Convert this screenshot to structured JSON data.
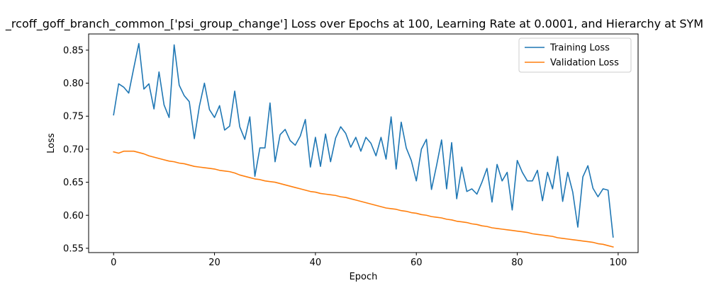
{
  "chart_data": {
    "type": "line",
    "title": "_rcoff_goff_branch_common_['psi_group_change'] Loss over Epochs at 100, Learning Rate at 0.0001, and Hierarchy at SYM",
    "xlabel": "Epoch",
    "ylabel": "Loss",
    "xlim": [
      -4.95,
      103.95
    ],
    "ylim": [
      0.5435,
      0.8745
    ],
    "xticks": [
      0,
      20,
      40,
      60,
      80,
      100
    ],
    "yticks": [
      0.55,
      0.6,
      0.65,
      0.7,
      0.75,
      0.8,
      0.85
    ],
    "xtick_labels": [
      "0",
      "20",
      "40",
      "60",
      "80",
      "100"
    ],
    "ytick_labels": [
      "0.55",
      "0.60",
      "0.65",
      "0.70",
      "0.75",
      "0.80",
      "0.85"
    ],
    "grid": false,
    "legend_position": "top-right",
    "x": [
      0,
      1,
      2,
      3,
      4,
      5,
      6,
      7,
      8,
      9,
      10,
      11,
      12,
      13,
      14,
      15,
      16,
      17,
      18,
      19,
      20,
      21,
      22,
      23,
      24,
      25,
      26,
      27,
      28,
      29,
      30,
      31,
      32,
      33,
      34,
      35,
      36,
      37,
      38,
      39,
      40,
      41,
      42,
      43,
      44,
      45,
      46,
      47,
      48,
      49,
      50,
      51,
      52,
      53,
      54,
      55,
      56,
      57,
      58,
      59,
      60,
      61,
      62,
      63,
      64,
      65,
      66,
      67,
      68,
      69,
      70,
      71,
      72,
      73,
      74,
      75,
      76,
      77,
      78,
      79,
      80,
      81,
      82,
      83,
      84,
      85,
      86,
      87,
      88,
      89,
      90,
      91,
      92,
      93,
      94,
      95,
      96,
      97,
      98,
      99
    ],
    "series": [
      {
        "name": "Training Loss",
        "color": "#1f77b4",
        "values": [
          0.752,
          0.799,
          0.794,
          0.785,
          0.823,
          0.86,
          0.791,
          0.799,
          0.761,
          0.817,
          0.767,
          0.748,
          0.858,
          0.797,
          0.781,
          0.772,
          0.716,
          0.765,
          0.8,
          0.76,
          0.748,
          0.766,
          0.729,
          0.735,
          0.788,
          0.734,
          0.715,
          0.749,
          0.659,
          0.702,
          0.702,
          0.77,
          0.681,
          0.722,
          0.73,
          0.713,
          0.706,
          0.72,
          0.745,
          0.673,
          0.718,
          0.674,
          0.723,
          0.681,
          0.717,
          0.734,
          0.724,
          0.703,
          0.718,
          0.697,
          0.718,
          0.709,
          0.69,
          0.718,
          0.685,
          0.749,
          0.67,
          0.741,
          0.702,
          0.683,
          0.652,
          0.7,
          0.715,
          0.639,
          0.675,
          0.714,
          0.64,
          0.71,
          0.625,
          0.673,
          0.636,
          0.64,
          0.632,
          0.65,
          0.671,
          0.62,
          0.677,
          0.652,
          0.665,
          0.608,
          0.683,
          0.665,
          0.652,
          0.652,
          0.668,
          0.622,
          0.665,
          0.64,
          0.689,
          0.621,
          0.665,
          0.635,
          0.582,
          0.658,
          0.675,
          0.641,
          0.628,
          0.64,
          0.638,
          0.567
        ]
      },
      {
        "name": "Validation Loss",
        "color": "#ff7f0e",
        "values": [
          0.696,
          0.694,
          0.697,
          0.697,
          0.697,
          0.695,
          0.693,
          0.69,
          0.688,
          0.686,
          0.684,
          0.682,
          0.681,
          0.679,
          0.678,
          0.676,
          0.674,
          0.673,
          0.672,
          0.671,
          0.67,
          0.668,
          0.667,
          0.666,
          0.664,
          0.661,
          0.659,
          0.657,
          0.655,
          0.654,
          0.652,
          0.651,
          0.65,
          0.648,
          0.646,
          0.644,
          0.642,
          0.64,
          0.638,
          0.636,
          0.635,
          0.633,
          0.632,
          0.631,
          0.63,
          0.628,
          0.627,
          0.625,
          0.623,
          0.621,
          0.619,
          0.617,
          0.615,
          0.613,
          0.611,
          0.61,
          0.609,
          0.607,
          0.606,
          0.604,
          0.603,
          0.601,
          0.6,
          0.598,
          0.597,
          0.596,
          0.594,
          0.593,
          0.591,
          0.59,
          0.589,
          0.587,
          0.586,
          0.584,
          0.583,
          0.581,
          0.58,
          0.579,
          0.578,
          0.577,
          0.576,
          0.575,
          0.574,
          0.572,
          0.571,
          0.57,
          0.569,
          0.568,
          0.566,
          0.565,
          0.564,
          0.563,
          0.562,
          0.561,
          0.56,
          0.559,
          0.557,
          0.556,
          0.554,
          0.552
        ]
      }
    ]
  }
}
